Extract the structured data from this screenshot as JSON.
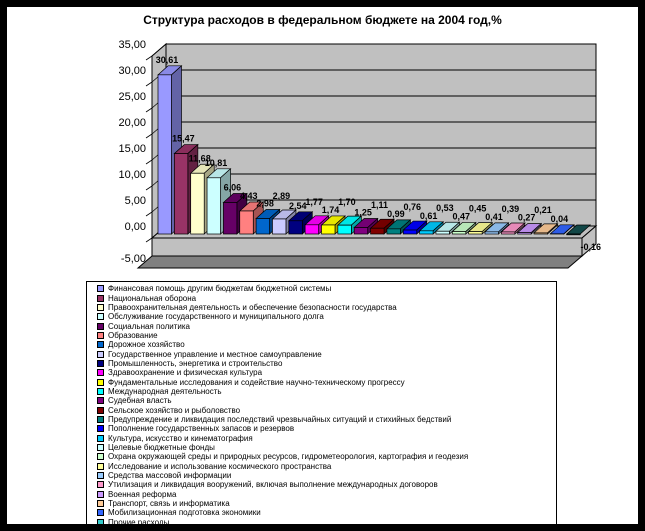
{
  "chart_data": {
    "type": "bar",
    "style": "3d-column",
    "title": "Структура расходов в федеральном бюджете на 2004 год,%",
    "xlabel": "",
    "ylabel": "",
    "ylim": [
      -5,
      35
    ],
    "y_tick_labels": [
      "35,00",
      "30,00",
      "25,00",
      "20,00",
      "15,00",
      "10,00",
      "5,00",
      "0,00",
      "-5,00"
    ],
    "grid": true,
    "legend_position": "bottom-box",
    "wall_color": "#C0C0C0",
    "floor_bevel_color": "#808080",
    "items": [
      {
        "label": "Финансовая помощь другим бюджетам бюджетной системы",
        "value": 30.61,
        "display": "30,61",
        "color": "#9999FF"
      },
      {
        "label": "Национальная оборона",
        "value": 15.47,
        "display": "15,47",
        "color": "#993366"
      },
      {
        "label": "Правоохранительная деятельность и обеспечение безопасности государства",
        "value": 11.68,
        "display": "11,68",
        "color": "#FFFFCC"
      },
      {
        "label": "Обслуживание государственного и муниципального долга",
        "value": 10.81,
        "display": "10,81",
        "color": "#CCFFFF"
      },
      {
        "label": "Социальная политика",
        "value": 6.06,
        "display": "6,06",
        "color": "#660066"
      },
      {
        "label": "Образование",
        "value": 4.43,
        "display": "4,43",
        "color": "#FF8080"
      },
      {
        "label": "Дорожное хозяйство",
        "value": 2.98,
        "display": "2,98",
        "color": "#0066CC"
      },
      {
        "label": "Государственное управление и местное самоуправление",
        "value": 2.89,
        "display": "2,89",
        "color": "#CCCCFF"
      },
      {
        "label": "Промышленность, энергетика и строительство",
        "value": 2.54,
        "display": "2,54",
        "color": "#000080"
      },
      {
        "label": "Здравоохранение и физическая культура",
        "value": 1.77,
        "display": "1,77",
        "color": "#FF00FF"
      },
      {
        "label": "Фундаментальные исследования и содействие научно-техническому прогрессу",
        "value": 1.74,
        "display": "1,74",
        "color": "#FFFF00"
      },
      {
        "label": "Международная деятельность",
        "value": 1.7,
        "display": "1,70",
        "color": "#00FFFF"
      },
      {
        "label": "Судебная власть",
        "value": 1.25,
        "display": "1,25",
        "color": "#800080"
      },
      {
        "label": "Сельское хозяйство и рыболовство",
        "value": 1.11,
        "display": "1,11",
        "color": "#800000"
      },
      {
        "label": "Предупреждение и ликвидация последствий чрезвычайных ситуаций и стихийных бедствий",
        "value": 0.99,
        "display": "0,99",
        "color": "#008080"
      },
      {
        "label": "Пополнение государственных запасов и резервов",
        "value": 0.76,
        "display": "0,76",
        "color": "#0000FF"
      },
      {
        "label": "Культура, искусство и кинематография",
        "value": 0.61,
        "display": "0,61",
        "color": "#00CCFF"
      },
      {
        "label": "Целевые бюджетные фонды",
        "value": 0.53,
        "display": "0,53",
        "color": "#CCFFFF"
      },
      {
        "label": "Охрана окружающей среды и природных ресурсов, гидрометеорология, картография и геодезия",
        "value": 0.47,
        "display": "0,47",
        "color": "#CCFFCC"
      },
      {
        "label": "Исследование и использование космического пространства",
        "value": 0.45,
        "display": "0,45",
        "color": "#FFFF99"
      },
      {
        "label": "Средства массовой информации",
        "value": 0.41,
        "display": "0,41",
        "color": "#99CCFF"
      },
      {
        "label": "Утилизация и ликвидация вооружений, включая выполнение международных договоров",
        "value": 0.39,
        "display": "0,39",
        "color": "#FF99CC"
      },
      {
        "label": "Военная реформа",
        "value": 0.27,
        "display": "0,27",
        "color": "#CC99FF"
      },
      {
        "label": "Транспорт, связь и информатика",
        "value": 0.21,
        "display": "0,21",
        "color": "#FFCC99"
      },
      {
        "label": "Мобилизационная подготовка экономики",
        "value": 0.04,
        "display": "0,04",
        "color": "#3366FF"
      },
      {
        "label": "Прочие расходы",
        "value": -0.16,
        "display": "-0,16",
        "color": "#33CCCC"
      }
    ]
  }
}
